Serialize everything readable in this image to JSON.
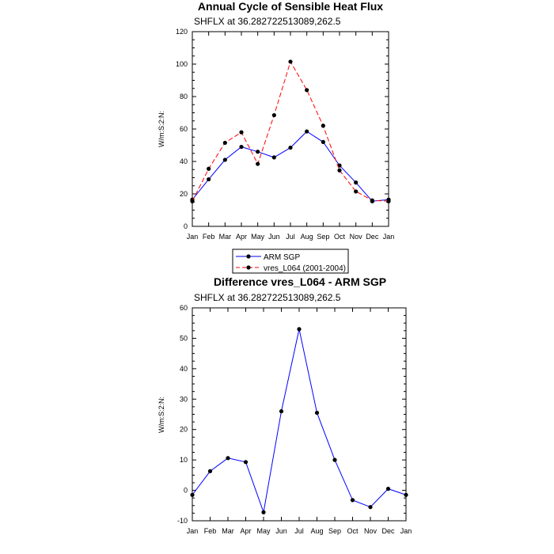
{
  "chart_data": [
    {
      "type": "line",
      "title": "Annual Cycle of Sensible Heat Flux",
      "subtitle": "SHFLX at 36.282722513089,262.5",
      "ylabel": "W/m:S:2:N:",
      "xlabel": "",
      "categories": [
        "Jan",
        "Feb",
        "Mar",
        "Apr",
        "May",
        "Jun",
        "Jul",
        "Aug",
        "Sep",
        "Oct",
        "Nov",
        "Dec",
        "Jan"
      ],
      "ylim": [
        0,
        120
      ],
      "yticks": [
        0,
        20,
        40,
        60,
        80,
        100,
        120
      ],
      "grid": false,
      "legend": "bottom-center",
      "series": [
        {
          "name": "ARM SGP",
          "color": "#0000ff",
          "style": "solid",
          "values": [
            16.5,
            29,
            41,
            49,
            46,
            42.5,
            48.5,
            58.5,
            52,
            37.5,
            27,
            15.5,
            16.5
          ]
        },
        {
          "name": "vres_L064 (2001-2004)",
          "color": "#ff0000",
          "style": "dashed",
          "values": [
            15.5,
            35.5,
            51.5,
            58,
            38.5,
            68.5,
            101.5,
            84,
            62,
            34.5,
            21.5,
            16,
            15.5
          ]
        }
      ]
    },
    {
      "type": "line",
      "title": "Difference vres_L064 - ARM SGP",
      "subtitle": "SHFLX at 36.282722513089,262.5",
      "ylabel": "W/m:S:2:N:",
      "xlabel": "",
      "categories": [
        "Jan",
        "Feb",
        "Mar",
        "Apr",
        "May",
        "Jun",
        "Jul",
        "Aug",
        "Sep",
        "Oct",
        "Nov",
        "Dec",
        "Jan"
      ],
      "ylim": [
        -10,
        60
      ],
      "yticks": [
        -10,
        0,
        10,
        20,
        30,
        40,
        50,
        60
      ],
      "grid": false,
      "series": [
        {
          "color": "#0000ff",
          "style": "solid",
          "values": [
            -1.5,
            6.3,
            10.6,
            9.3,
            -7.2,
            26,
            53,
            25.5,
            10,
            -3.2,
            -5.5,
            0.5,
            -1.5
          ]
        }
      ]
    }
  ]
}
